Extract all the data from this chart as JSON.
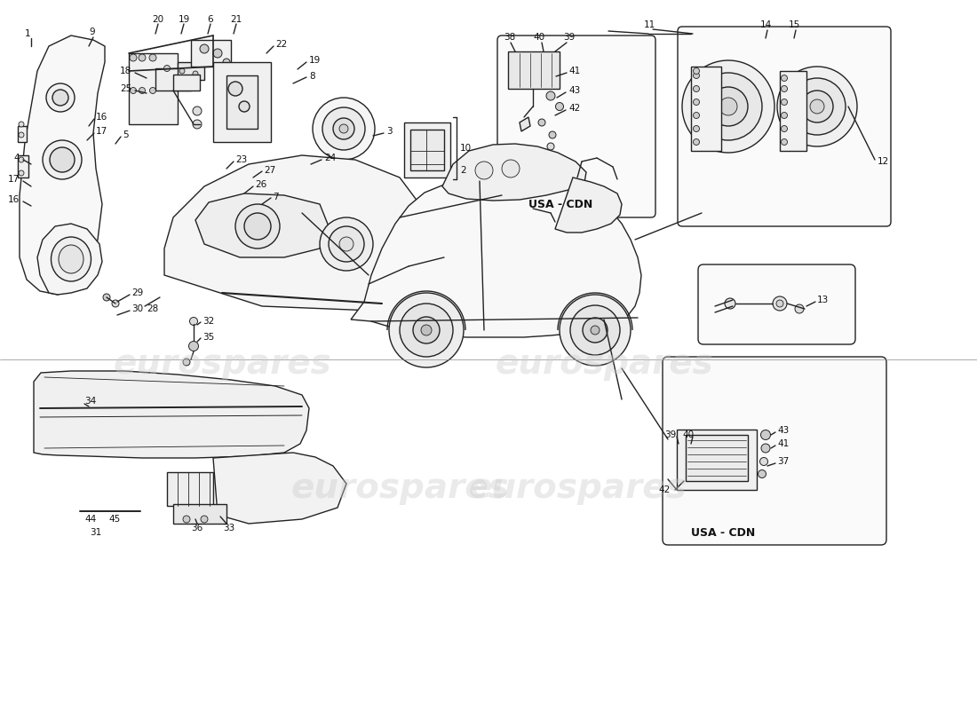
{
  "bg": "#ffffff",
  "lc": "#222222",
  "tc": "#111111",
  "lw": 1.0,
  "fs": 7.5,
  "wm_color": "#cccccc",
  "wm_alpha": 0.4,
  "wm_text": "eurospares",
  "usa_cdn": "USA - CDN"
}
